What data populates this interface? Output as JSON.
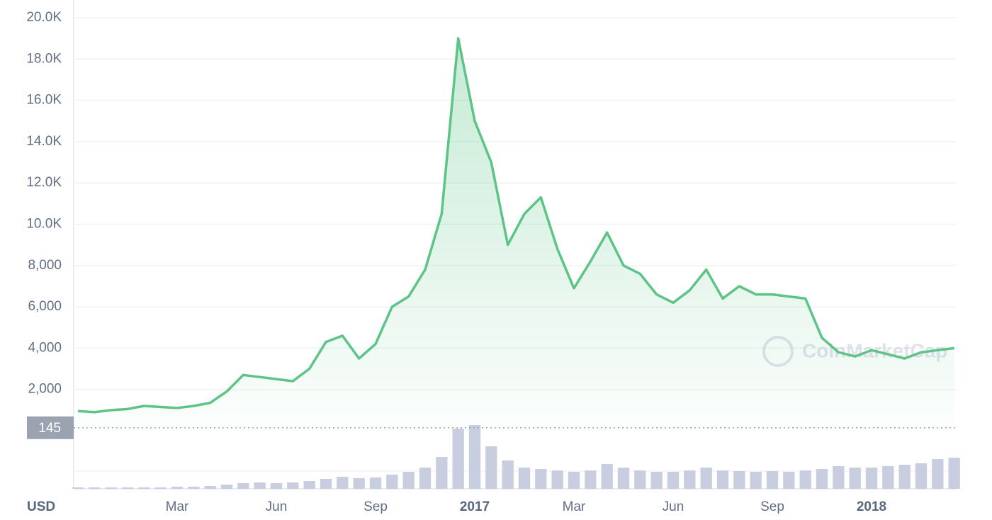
{
  "chart_data": {
    "type": "line",
    "categories": [
      null,
      null,
      null,
      null,
      null,
      null,
      "Mar",
      null,
      null,
      null,
      null,
      null,
      "Jun",
      null,
      null,
      null,
      null,
      null,
      "Sep",
      null,
      null,
      null,
      null,
      null,
      "2017",
      null,
      null,
      null,
      null,
      null,
      "Mar",
      null,
      null,
      null,
      null,
      null,
      "Jun",
      null,
      null,
      null,
      null,
      null,
      "Sep",
      null,
      null,
      null,
      null,
      null,
      "2018",
      null,
      null,
      null,
      null,
      null
    ],
    "series": [
      {
        "color": "#5cc486",
        "values": [
          950,
          900,
          1000,
          1050,
          1200,
          1150,
          1100,
          1200,
          1350,
          1900,
          2700,
          2600,
          2500,
          2400,
          3000,
          4300,
          4600,
          3500,
          4200,
          6000,
          6500,
          7800,
          10500,
          19000,
          15000,
          13000,
          9000,
          10500,
          11300,
          8800,
          6900,
          8200,
          9600,
          8000,
          7600,
          6600,
          6200,
          6800,
          7800,
          6400,
          7000,
          6600,
          6600,
          6500,
          6400,
          4500,
          3800,
          3600,
          3900,
          3700,
          3500,
          3800,
          3900,
          4000
        ]
      }
    ],
    "volume": {
      "color": "#c9cde0",
      "ylim": [
        0,
        100
      ],
      "values": [
        2,
        2,
        2,
        2,
        2,
        2,
        3,
        3,
        4,
        6,
        8,
        9,
        8,
        9,
        11,
        14,
        17,
        15,
        16,
        20,
        24,
        30,
        45,
        85,
        90,
        60,
        40,
        30,
        28,
        26,
        24,
        26,
        35,
        30,
        26,
        24,
        24,
        26,
        30,
        26,
        25,
        24,
        25,
        24,
        26,
        28,
        32,
        30,
        30,
        32,
        34,
        36,
        42,
        44
      ]
    },
    "ylim": [
      0,
      20000
    ],
    "yticks": [
      {
        "value": 2000,
        "label": "2,000"
      },
      {
        "value": 4000,
        "label": "4,000"
      },
      {
        "value": 6000,
        "label": "6,000"
      },
      {
        "value": 8000,
        "label": "8,000"
      },
      {
        "value": 10000,
        "label": "10.0K"
      },
      {
        "value": 12000,
        "label": "12.0K"
      },
      {
        "value": 14000,
        "label": "14.0K"
      },
      {
        "value": 16000,
        "label": "16.0K"
      },
      {
        "value": 18000,
        "label": "18.0K"
      },
      {
        "value": 20000,
        "label": "20.0K"
      }
    ],
    "grid": true,
    "currency_label": "USD",
    "price_marker": {
      "value": 145,
      "label": "145"
    },
    "watermark": "CoinMarketCap"
  }
}
